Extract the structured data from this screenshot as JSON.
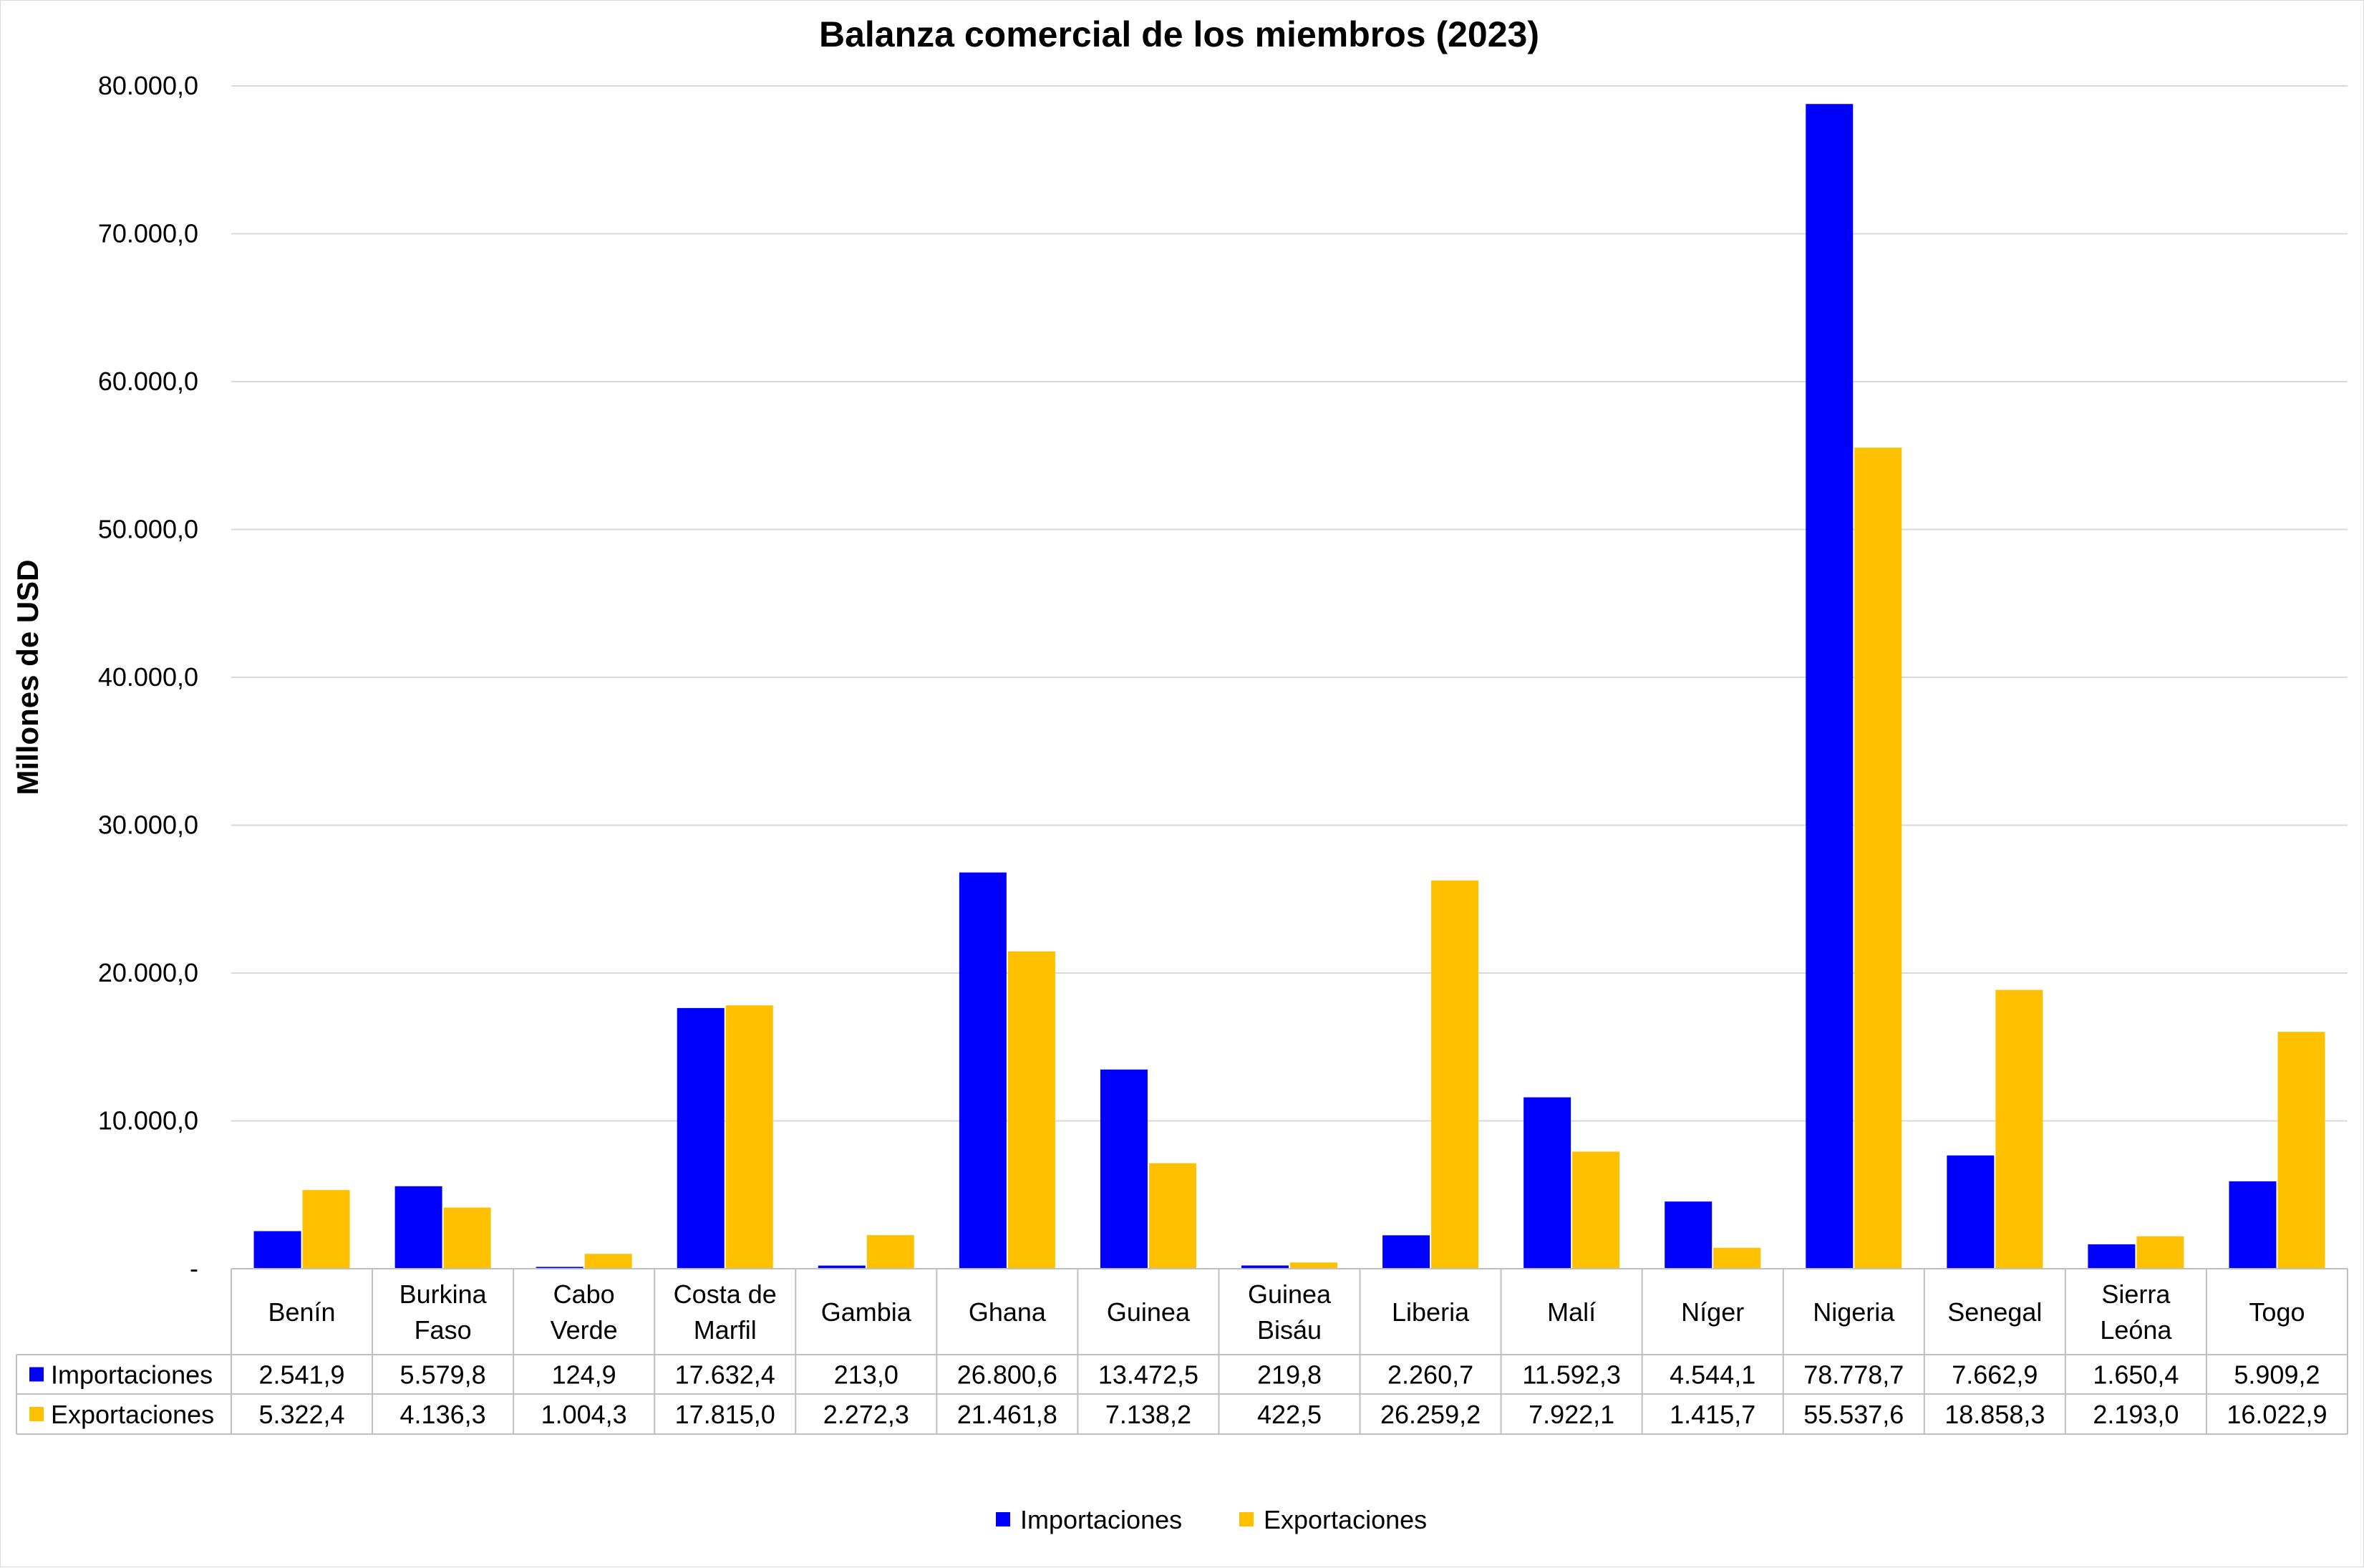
{
  "chart_data": {
    "type": "bar",
    "title": "Balanza comercial de los miembros (2023)",
    "xlabel": "",
    "ylabel": "Millones de USD",
    "ylim": [
      0,
      80000
    ],
    "ytick_labels": [
      "-",
      "10.000,0",
      "20.000,0",
      "30.000,0",
      "40.000,0",
      "50.000,0",
      "60.000,0",
      "70.000,0",
      "80.000,0"
    ],
    "grid": true,
    "legend_position": "bottom",
    "categories": [
      [
        "Benín"
      ],
      [
        "Burkina",
        "Faso"
      ],
      [
        "Cabo",
        "Verde"
      ],
      [
        "Costa de",
        "Marfil"
      ],
      [
        "Gambia"
      ],
      [
        "Ghana"
      ],
      [
        "Guinea"
      ],
      [
        "Guinea",
        "Bisáu"
      ],
      [
        "Liberia"
      ],
      [
        "Malí"
      ],
      [
        "Níger"
      ],
      [
        "Nigeria"
      ],
      [
        "Senegal"
      ],
      [
        "Sierra",
        "Leóna"
      ],
      [
        "Togo"
      ]
    ],
    "series": [
      {
        "name": "Importaciones",
        "color": "#0000ff",
        "values": [
          2541.9,
          5579.8,
          124.9,
          17632.4,
          213.0,
          26800.6,
          13472.5,
          219.8,
          2260.7,
          11592.3,
          4544.1,
          78778.7,
          7662.9,
          1650.4,
          5909.2
        ],
        "labels": [
          "2.541,9",
          "5.579,8",
          "124,9",
          "17.632,4",
          "213,0",
          "26.800,6",
          "13.472,5",
          "219,8",
          "2.260,7",
          "11.592,3",
          "4.544,1",
          "78.778,7",
          "7.662,9",
          "1.650,4",
          "5.909,2"
        ]
      },
      {
        "name": "Exportaciones",
        "color": "#ffc000",
        "values": [
          5322.4,
          4136.3,
          1004.3,
          17815.0,
          2272.3,
          21461.8,
          7138.2,
          422.5,
          26259.2,
          7922.1,
          1415.7,
          55537.6,
          18858.3,
          2193.0,
          16022.9
        ],
        "labels": [
          "5.322,4",
          "4.136,3",
          "1.004,3",
          "17.815,0",
          "2.272,3",
          "21.461,8",
          "7.138,2",
          "422,5",
          "26.259,2",
          "7.922,1",
          "1.415,7",
          "55.537,6",
          "18.858,3",
          "2.193,0",
          "16.022,9"
        ]
      }
    ]
  }
}
